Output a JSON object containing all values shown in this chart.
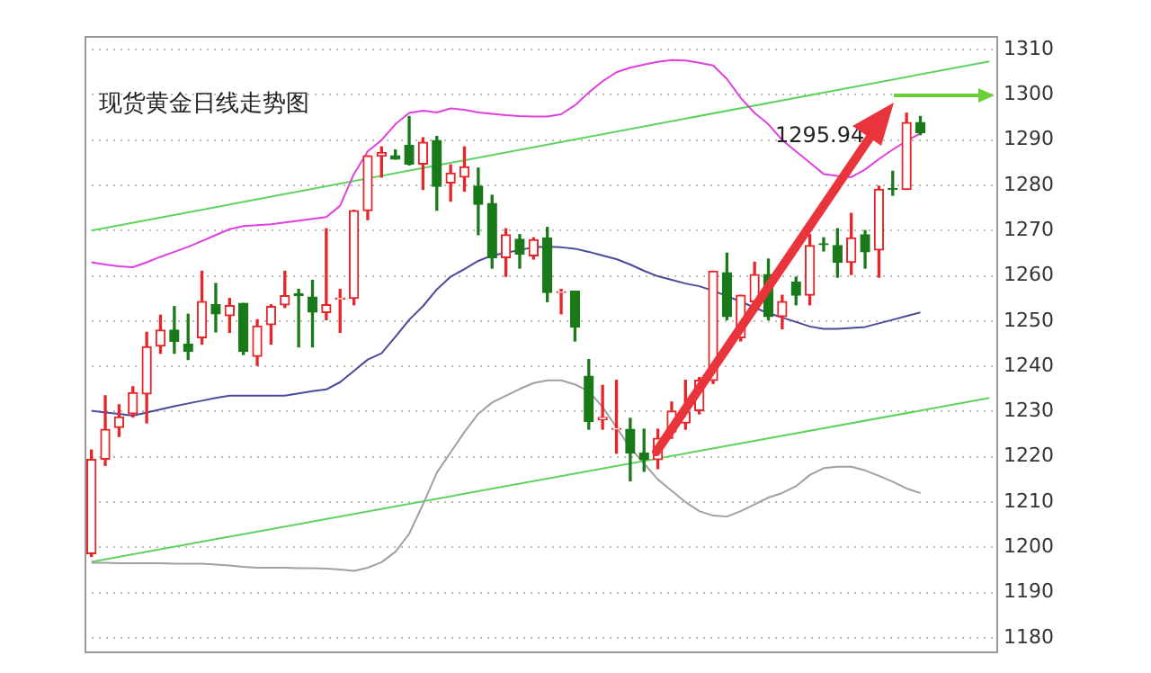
{
  "chart_data": {
    "type": "candlestick",
    "title": "现货黄金日线走势图",
    "categories": [
      null,
      null,
      null,
      null,
      null,
      null,
      null,
      null,
      null,
      null,
      null,
      null,
      null,
      null,
      null,
      null,
      null,
      null,
      null,
      null,
      null,
      null,
      null,
      null,
      null,
      null,
      null,
      null,
      null,
      null,
      null,
      null,
      null,
      null,
      null,
      null,
      null,
      null,
      null,
      null,
      null,
      null,
      null,
      null,
      null,
      null,
      null,
      null,
      null,
      null,
      null,
      null,
      null,
      null,
      null,
      null,
      null,
      null,
      null,
      null,
      null,
      null,
      null,
      null,
      null,
      null
    ],
    "ohlc": [
      [
        1198.6,
        1221.5,
        1198,
        1219.4
      ],
      [
        1219.5,
        1233.5,
        1218.1,
        1226.1
      ],
      [
        1226.5,
        1231.5,
        1224.5,
        1228.8
      ],
      [
        1229.5,
        1235.5,
        1228.8,
        1234.2
      ],
      [
        1233.9,
        1247.5,
        1227.5,
        1244.3
      ],
      [
        1244.5,
        1251.3,
        1242.9,
        1248
      ],
      [
        1248,
        1253.2,
        1242.9,
        1245.5
      ],
      [
        1244.9,
        1251.5,
        1241.5,
        1243.3
      ],
      [
        1246.3,
        1261,
        1244.9,
        1254.3
      ],
      [
        1253.6,
        1258.3,
        1247.6,
        1251.6
      ],
      [
        1251.2,
        1255,
        1247.5,
        1253.4
      ],
      [
        1253.9,
        1253.9,
        1242.6,
        1243.3
      ],
      [
        1242.2,
        1250.3,
        1240.2,
        1248.9
      ],
      [
        1249.2,
        1253.6,
        1244.9,
        1253.2
      ],
      [
        1253.6,
        1261,
        1253,
        1255.6
      ],
      [
        1256,
        1257,
        1244.3,
        1255.6
      ],
      [
        1255.3,
        1259,
        1244.3,
        1252
      ],
      [
        1251.9,
        1270.4,
        1250.3,
        1253.6
      ],
      [
        1254.8,
        1257,
        1247.5,
        1255.1
      ],
      [
        1255,
        1274.5,
        1253.6,
        1274.4
      ],
      [
        1274.4,
        1286.5,
        1272.4,
        1286.5
      ],
      [
        1286.5,
        1288.5,
        1281.8,
        1287.2
      ],
      [
        1286.5,
        1287.8,
        1285.8,
        1285.8
      ],
      [
        1288.8,
        1295.2,
        1284.5,
        1284.7
      ],
      [
        1284.7,
        1290.5,
        1279.1,
        1289.5
      ],
      [
        1289.9,
        1290.8,
        1274.5,
        1279.8
      ],
      [
        1280.5,
        1284.5,
        1276.5,
        1282.7
      ],
      [
        1281.8,
        1288.5,
        1278.7,
        1284.1
      ],
      [
        1279.8,
        1283.8,
        1269.1,
        1275.8
      ],
      [
        1276,
        1277.8,
        1261.7,
        1264
      ],
      [
        1264,
        1270.4,
        1259.9,
        1269.1
      ],
      [
        1268.1,
        1269.1,
        1261.7,
        1264.8
      ],
      [
        1264.4,
        1268.4,
        1263.7,
        1268
      ],
      [
        1268.4,
        1270.7,
        1254.3,
        1256.3
      ],
      [
        1256.3,
        1257,
        1251.6,
        1256.5
      ],
      [
        1256.6,
        1256.6,
        1245.6,
        1248.7
      ],
      [
        1237.8,
        1241.5,
        1226.1,
        1227.8
      ],
      [
        1228.2,
        1235.8,
        1226.1,
        1228.7
      ],
      [
        1226.1,
        1236.9,
        1220.8,
        1226.3
      ],
      [
        1226.1,
        1228.5,
        1214.7,
        1220.8
      ],
      [
        1220.8,
        1226.1,
        1216.8,
        1219.4
      ],
      [
        1219.4,
        1226.1,
        1217.4,
        1224.1
      ],
      [
        1225.5,
        1232.1,
        1224.1,
        1230.1
      ],
      [
        1227.5,
        1236.9,
        1226.1,
        1229.9
      ],
      [
        1230.2,
        1237.5,
        1229.5,
        1236.9
      ],
      [
        1236.9,
        1261,
        1236.2,
        1261
      ],
      [
        1260.7,
        1265,
        1250.3,
        1251
      ],
      [
        1246.3,
        1255.7,
        1245.6,
        1255.7
      ],
      [
        1254.3,
        1263,
        1253.6,
        1260.3
      ],
      [
        1260.3,
        1263.7,
        1250.3,
        1251
      ],
      [
        1251,
        1255.7,
        1248.3,
        1254.3
      ],
      [
        1258.6,
        1259.7,
        1253.6,
        1255.7
      ],
      [
        1255.7,
        1269.1,
        1253.6,
        1266.7
      ],
      [
        1267.1,
        1268.4,
        1265.5,
        1266.9
      ],
      [
        1266.7,
        1270.4,
        1259.7,
        1263
      ],
      [
        1263,
        1273.8,
        1260.3,
        1268.4
      ],
      [
        1269.1,
        1270,
        1261.7,
        1265.3
      ],
      [
        1265.7,
        1279.8,
        1259.7,
        1279.1
      ],
      [
        1279.3,
        1283.1,
        1277.8,
        1279.1
      ],
      [
        1279.1,
        1295.94,
        1279.1,
        1293.9
      ],
      [
        1293.9,
        1295.2,
        1291.2,
        1291.6
      ],
      null,
      null,
      null,
      null,
      null
    ],
    "colors": [
      "#e8262a",
      "#e8262a",
      "#e8262a",
      "#e8262a",
      "#e8262a",
      "#e8262a",
      "#1a7a1a",
      "#1a7a1a",
      "#e8262a",
      "#1a7a1a",
      "#e8262a",
      "#1a7a1a",
      "#e8262a",
      "#e8262a",
      "#e8262a",
      "#1a7a1a",
      "#1a7a1a",
      "#e8262a",
      "#e8262a",
      "#e8262a",
      "#e8262a",
      "#e8262a",
      "#1a7a1a",
      "#1a7a1a",
      "#e8262a",
      "#1a7a1a",
      "#e8262a",
      "#e8262a",
      "#1a7a1a",
      "#1a7a1a",
      "#e8262a",
      "#1a7a1a",
      "#e8262a",
      "#1a7a1a",
      "#e8262a",
      "#1a7a1a",
      "#1a7a1a",
      "#e8262a",
      "#e8262a",
      "#1a7a1a",
      "#1a7a1a",
      "#e8262a",
      "#e8262a",
      "#e8262a",
      "#e8262a",
      "#e8262a",
      "#1a7a1a",
      "#e8262a",
      "#e8262a",
      "#1a7a1a",
      "#e8262a",
      "#1a7a1a",
      "#e8262a",
      "#1a7a1a",
      "#1a7a1a",
      "#e8262a",
      "#1a7a1a",
      "#e8262a",
      "#1a7a1a",
      "#e8262a",
      "#1a7a1a",
      null,
      null,
      null,
      null,
      null
    ],
    "series": [
      {
        "type": "line",
        "color": "#e040e0",
        "values": [
          1263,
          1262.5,
          1262.1,
          1261.9,
          1263,
          1264.2,
          1265.3,
          1266.4,
          1267.7,
          1269,
          1270.3,
          1271,
          1271.2,
          1271.4,
          1271.8,
          1272.2,
          1272.6,
          1273,
          1275.5,
          1282.5,
          1287.5,
          1290,
          1293.5,
          1296,
          1296.5,
          1296.1,
          1297,
          1296.7,
          1296.1,
          1295.8,
          1295.5,
          1295.3,
          1295.2,
          1295.2,
          1295.7,
          1297.7,
          1300.5,
          1303,
          1305,
          1306,
          1306.7,
          1307.3,
          1307.7,
          1307.6,
          1307.1,
          1306.5,
          1303.5,
          1299.3,
          1296,
          1293.5,
          1290,
          1287.5,
          1285,
          1282.5,
          1282.1,
          1281.8,
          1283.5,
          1285.8,
          1287.9,
          1289.8,
          1291.5,
          null,
          null,
          null,
          null,
          null
        ]
      },
      {
        "type": "line",
        "color": "#4a4a9a",
        "values": [
          1230.2,
          1229.8,
          1229.5,
          1229.1,
          1229.8,
          1230.5,
          1231.2,
          1231.8,
          1232.4,
          1233,
          1233.5,
          1233.5,
          1233.5,
          1233.5,
          1233.5,
          1234,
          1234.5,
          1234.9,
          1236.5,
          1239,
          1241.5,
          1242.9,
          1246.5,
          1250.3,
          1253.3,
          1257,
          1259.8,
          1261.5,
          1263.3,
          1264.5,
          1265.1,
          1265.7,
          1266.3,
          1266.4,
          1266.3,
          1266,
          1265.3,
          1264.5,
          1263.7,
          1262.5,
          1261.1,
          1259.9,
          1259.1,
          1258.3,
          1257.7,
          1256.7,
          1255.5,
          1254.3,
          1253,
          1251.7,
          1250.8,
          1249.8,
          1248.8,
          1248.3,
          1248.3,
          1248.5,
          1248.7,
          1249.5,
          1250.3,
          1251.1,
          1251.9,
          null,
          null,
          null,
          null,
          null
        ]
      },
      {
        "type": "line",
        "color": "#a0a0a0",
        "values": [
          1196.6,
          1196.6,
          1196.5,
          1196.5,
          1196.5,
          1196.5,
          1196.4,
          1196.4,
          1196.4,
          1196.2,
          1196,
          1195.7,
          1195.5,
          1195.5,
          1195.5,
          1195.4,
          1195.4,
          1195.3,
          1195.1,
          1194.8,
          1195.5,
          1196.7,
          1199,
          1203,
          1209.5,
          1216.5,
          1221,
          1225.5,
          1229.5,
          1232,
          1233.5,
          1235,
          1236.3,
          1236.9,
          1236.9,
          1236,
          1234.5,
          1231,
          1226.5,
          1222,
          1218.5,
          1215,
          1212.5,
          1210,
          1208,
          1207,
          1206.8,
          1208,
          1209.5,
          1211,
          1212,
          1213.5,
          1216,
          1217.5,
          1217.8,
          1217.8,
          1217,
          1215.8,
          1214.5,
          1213,
          1212,
          null,
          null,
          null,
          null,
          null
        ]
      },
      {
        "type": "line",
        "color": "#5fd35f",
        "values": [
          1270,
          null,
          null,
          null,
          null,
          null,
          null,
          null,
          null,
          null,
          null,
          null,
          null,
          null,
          null,
          null,
          null,
          null,
          null,
          null,
          null,
          null,
          null,
          null,
          null,
          null,
          null,
          null,
          null,
          null,
          null,
          null,
          null,
          null,
          null,
          null,
          null,
          null,
          null,
          null,
          null,
          null,
          null,
          null,
          null,
          null,
          null,
          null,
          null,
          null,
          null,
          null,
          null,
          null,
          null,
          null,
          null,
          null,
          null,
          null,
          null,
          null,
          null,
          null,
          null,
          1307.4
        ]
      },
      {
        "type": "line",
        "color": "#5fd35f",
        "values": [
          1196.8,
          null,
          null,
          null,
          null,
          null,
          null,
          null,
          null,
          null,
          null,
          null,
          null,
          null,
          null,
          null,
          null,
          null,
          null,
          null,
          null,
          null,
          null,
          null,
          null,
          null,
          null,
          null,
          null,
          null,
          null,
          null,
          null,
          null,
          null,
          null,
          null,
          null,
          null,
          null,
          null,
          null,
          null,
          null,
          null,
          null,
          null,
          null,
          null,
          null,
          null,
          null,
          null,
          null,
          null,
          null,
          null,
          null,
          null,
          null,
          null,
          null,
          null,
          null,
          null,
          1233
        ]
      }
    ],
    "annotations": [
      "1295.94"
    ],
    "ylim": [
      1177,
      1313
    ],
    "yticks": [
      1180,
      1190,
      1200,
      1210,
      1220,
      1230,
      1240,
      1250,
      1260,
      1270,
      1280,
      1290,
      1300,
      1310
    ],
    "grid": "y",
    "tick_labels": "y",
    "legend": false
  }
}
